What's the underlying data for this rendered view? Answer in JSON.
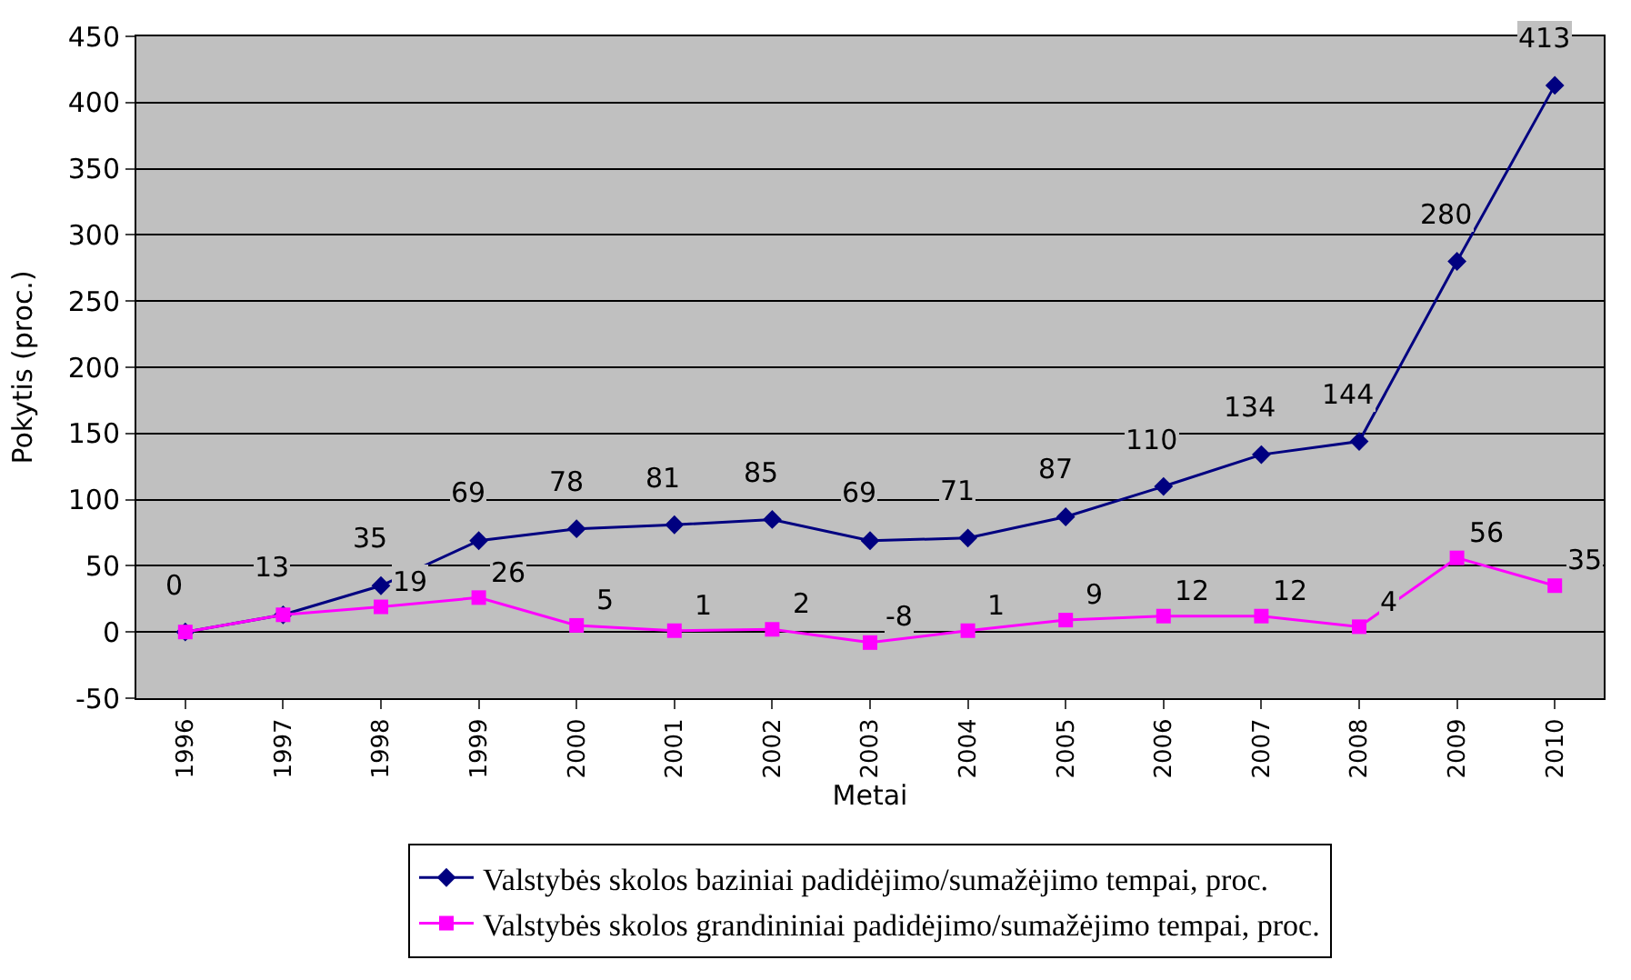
{
  "chart_data": {
    "type": "line",
    "xlabel": "Metai",
    "ylabel": "Pokytis (proc.)",
    "categories": [
      "1996",
      "1997",
      "1998",
      "1999",
      "2000",
      "2001",
      "2002",
      "2003",
      "2004",
      "2005",
      "2006",
      "2007",
      "2008",
      "2009",
      "2010"
    ],
    "series": [
      {
        "name": "Valstybės skolos baziniai padidėjimo/sumažėjimo tempai, proc.",
        "color": "#000080",
        "marker": "diamond",
        "values": [
          0,
          13,
          35,
          69,
          78,
          81,
          85,
          69,
          71,
          87,
          110,
          134,
          144,
          280,
          413
        ],
        "value_labels": [
          "0",
          "13",
          "35",
          "69",
          "78",
          "81",
          "85",
          "69",
          "71",
          "87",
          "110",
          "134",
          "144",
          "280",
          "413"
        ]
      },
      {
        "name": "Valstybės skolos grandininiai padidėjimo/sumažėjimo tempai, proc.",
        "color": "#ff00ff",
        "marker": "square",
        "values": [
          0,
          13,
          19,
          26,
          5,
          1,
          2,
          -8,
          1,
          9,
          12,
          12,
          4,
          56,
          35
        ],
        "value_labels": [
          null,
          null,
          "19",
          "26",
          "5",
          "1",
          "2",
          "-8",
          "1",
          "9",
          "12",
          "12",
          "4",
          "56",
          "35"
        ]
      }
    ],
    "ylim": [
      -50,
      450
    ],
    "yticks": [
      -50,
      0,
      50,
      100,
      150,
      200,
      250,
      300,
      350,
      400,
      450
    ],
    "grid": "y",
    "legend": "bottom"
  }
}
